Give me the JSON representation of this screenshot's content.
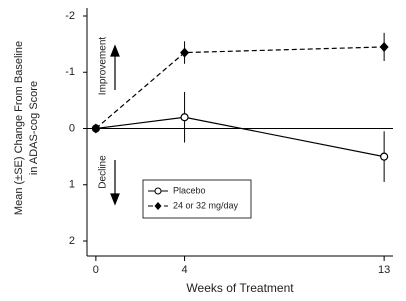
{
  "chart_data": {
    "type": "line",
    "y_label_lines": [
      "Mean (±SE) Change From Baseline",
      "in ADAS-cog Score"
    ],
    "x_label": "Weeks of Treatment",
    "annotations": [
      "Improvement",
      "Decline"
    ],
    "x": [
      0,
      4,
      13
    ],
    "xlim": [
      -0.4,
      13.4
    ],
    "xticks": [
      0,
      4,
      13
    ],
    "ylim": [
      2,
      -2
    ],
    "yticks": [
      -2,
      -1,
      0,
      1,
      2
    ],
    "legend": "lower-center",
    "series": [
      {
        "name": "Placebo",
        "color": "#000000",
        "line_style": "solid",
        "marker": "open-circle",
        "values": [
          0,
          -0.2,
          0.5
        ],
        "errors": [
          null,
          0.45,
          0.45
        ]
      },
      {
        "name": "24 or 32 mg/day",
        "color": "#000000",
        "line_style": "dashed",
        "marker": "diamond",
        "values": [
          0,
          -1.35,
          -1.45
        ],
        "errors": [
          null,
          0.2,
          0.25
        ]
      }
    ]
  }
}
